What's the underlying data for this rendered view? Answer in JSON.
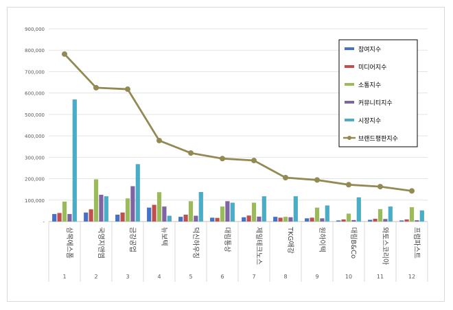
{
  "chart_data": {
    "type": "bar",
    "title": "",
    "xlabel": "",
    "ylabel": "",
    "ylim": [
      0,
      900000
    ],
    "yticks": [
      "-",
      "100,000",
      "200,000",
      "300,000",
      "400,000",
      "500,000",
      "600,000",
      "700,000",
      "800,000",
      "900,000"
    ],
    "categories": [
      {
        "rank": "1",
        "name": "삼목에스폼"
      },
      {
        "rank": "2",
        "name": "국영지앤엠"
      },
      {
        "rank": "3",
        "name": "금강공업"
      },
      {
        "rank": "4",
        "name": "뉴보텍"
      },
      {
        "rank": "5",
        "name": "덕신하우징"
      },
      {
        "rank": "6",
        "name": "대림통상"
      },
      {
        "rank": "7",
        "name": "제일테크노스"
      },
      {
        "rank": "8",
        "name": "TKG애강"
      },
      {
        "rank": "9",
        "name": "원하이텍"
      },
      {
        "rank": "10",
        "name": "대림B&Co"
      },
      {
        "rank": "11",
        "name": "와토스코리아"
      },
      {
        "rank": "12",
        "name": "프럼파스트"
      }
    ],
    "series": [
      {
        "name": "참여지수",
        "color": "#4472c4",
        "values": [
          35000,
          42000,
          32000,
          65000,
          22000,
          18000,
          20000,
          22000,
          15000,
          5000,
          8000,
          5000
        ]
      },
      {
        "name": "미디어지수",
        "color": "#c0504d",
        "values": [
          40000,
          57000,
          42000,
          78000,
          32000,
          17000,
          28000,
          18000,
          18000,
          10000,
          13000,
          10000
        ]
      },
      {
        "name": "소통지수",
        "color": "#9bbb59",
        "values": [
          93000,
          197000,
          108000,
          137000,
          95000,
          70000,
          88000,
          22000,
          65000,
          37000,
          58000,
          67000
        ]
      },
      {
        "name": "커뮤니티지수",
        "color": "#8064a2",
        "values": [
          35000,
          125000,
          165000,
          70000,
          27000,
          95000,
          23000,
          20000,
          15000,
          7000,
          12000,
          6000
        ]
      },
      {
        "name": "시장지수",
        "color": "#4bacc6",
        "values": [
          570000,
          118000,
          268000,
          27000,
          138000,
          88000,
          118000,
          118000,
          75000,
          113000,
          70000,
          52000
        ]
      }
    ],
    "line": {
      "name": "브랜드평판지수",
      "color": "#938953",
      "values": [
        782000,
        625000,
        618000,
        378000,
        320000,
        294000,
        285000,
        205000,
        194000,
        172000,
        163000,
        143000
      ]
    },
    "legend": "right"
  }
}
